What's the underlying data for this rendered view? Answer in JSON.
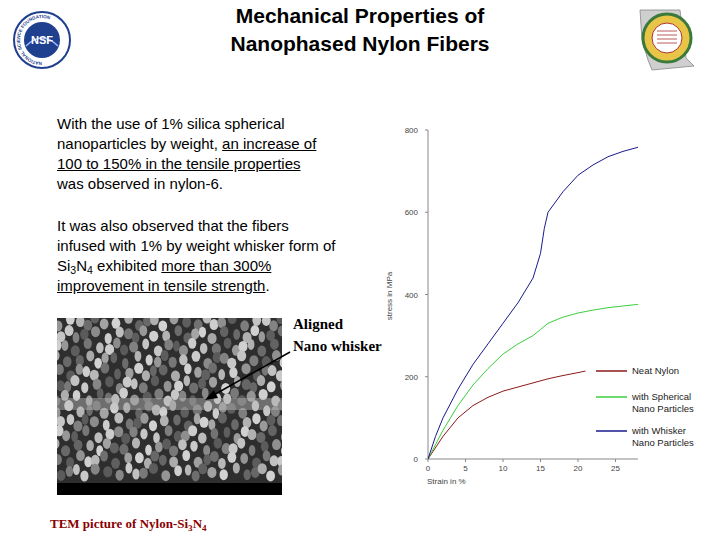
{
  "slide": {
    "title": [
      "Mechanical Properties of",
      "Nanophased Nylon Fibers"
    ],
    "logo_left": {
      "text": "NSF",
      "ring_text": "NATIONAL SCIENCE FOUNDATION"
    },
    "paragraphs": [
      {
        "lines": [
          [
            {
              "text": "With the use of 1% silica spherical"
            }
          ],
          [
            {
              "text": "nanoparticles by weight, "
            },
            {
              "text": "an increase of",
              "underline": true
            }
          ],
          [
            {
              "text": "100 to 150% in the tensile properties",
              "underline": true
            }
          ],
          [
            {
              "text": "was observed in nylon-6."
            }
          ]
        ]
      },
      {
        "lines": [
          [
            {
              "text": "It was also observed that the fibers"
            }
          ],
          [
            {
              "text": "infused with 1% by weight whisker form of"
            }
          ],
          [
            {
              "text": "Si"
            },
            {
              "text": "3",
              "sub": true
            },
            {
              "text": "N"
            },
            {
              "text": "4",
              "sub": true
            },
            {
              "text": " exhibited "
            },
            {
              "text": "more than 300%",
              "underline": true
            }
          ],
          [
            {
              "text": "improvement in tensile strength",
              "underline": true
            },
            {
              "text": "."
            }
          ]
        ]
      }
    ],
    "image_annotation": [
      "Aligned",
      "Nano whisker"
    ],
    "caption": [
      {
        "text": "TEM picture of Nylon-Si"
      },
      {
        "text": "3",
        "sub": true
      },
      {
        "text": "N"
      },
      {
        "text": "4",
        "sub": true
      }
    ]
  },
  "chart_data": {
    "type": "line",
    "x_label": "Strain in %",
    "y_label": "stress in MPa",
    "xlim": [
      0,
      28
    ],
    "ylim": [
      0,
      800
    ],
    "xticks": [
      0,
      5,
      10,
      15,
      20,
      25
    ],
    "yticks": [
      0,
      200,
      400,
      600,
      800
    ],
    "grid": false,
    "legend": "lower right",
    "series": [
      {
        "name": "Neat Nylon",
        "color": "#8b1a1a",
        "x": [
          0,
          2,
          4,
          6,
          8,
          10,
          12,
          14,
          16,
          18,
          20,
          21
        ],
        "values": [
          0,
          55,
          100,
          130,
          150,
          165,
          175,
          185,
          195,
          203,
          210,
          214
        ]
      },
      {
        "name": "with Spherical Nano Particles",
        "color": "#3ccf3c",
        "x": [
          0,
          2,
          4,
          6,
          8,
          10,
          12,
          14,
          15,
          16,
          18,
          20,
          22,
          24,
          26,
          28
        ],
        "values": [
          0,
          70,
          130,
          180,
          220,
          255,
          280,
          300,
          315,
          330,
          345,
          355,
          362,
          368,
          372,
          376
        ]
      },
      {
        "name": "with Whisker Nano Particles",
        "color": "#1a1a8c",
        "x": [
          0,
          1,
          2,
          4,
          6,
          8,
          10,
          12,
          14,
          15,
          15.5,
          16,
          18,
          20,
          22,
          24,
          26,
          28
        ],
        "values": [
          0,
          55,
          100,
          170,
          230,
          280,
          330,
          380,
          440,
          500,
          560,
          600,
          650,
          690,
          715,
          735,
          748,
          758
        ]
      }
    ]
  }
}
